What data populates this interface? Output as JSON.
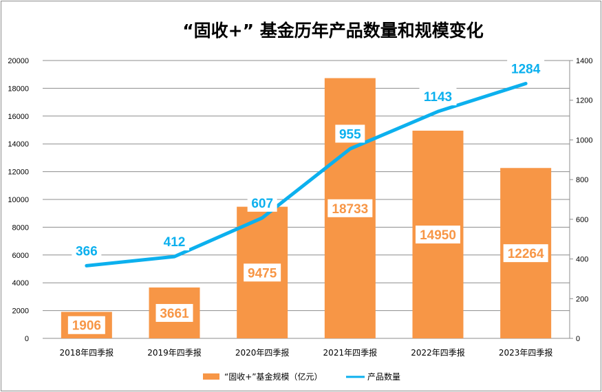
{
  "chart_data": {
    "type": "bar+line",
    "title": "“固收+” 基金历年产品数量和规模变化",
    "categories": [
      "2018年四季报",
      "2019年四季报",
      "2020年四季报",
      "2021年四季报",
      "2022年四季报",
      "2023年四季报"
    ],
    "series": [
      {
        "name": "“固收+”基金规模（亿元）",
        "type": "bar",
        "axis": "left",
        "color": "#f79646",
        "values": [
          1906,
          3661,
          9475,
          18733,
          14950,
          12264
        ]
      },
      {
        "name": "产品数量",
        "type": "line",
        "axis": "right",
        "color": "#0cb0ee",
        "values": [
          366,
          412,
          607,
          955,
          1143,
          1284
        ]
      }
    ],
    "y_left": {
      "min": 0,
      "max": 20000,
      "step": 2000,
      "ticks": [
        "0",
        "2000",
        "4000",
        "6000",
        "8000",
        "10000",
        "12000",
        "14000",
        "16000",
        "18000",
        "20000"
      ]
    },
    "y_right": {
      "min": 0,
      "max": 1400,
      "step": 200,
      "ticks": [
        "0",
        "200",
        "400",
        "600",
        "800",
        "1000",
        "1200",
        "1400"
      ]
    },
    "grid": true,
    "legend": "bottom",
    "data_labels": true
  }
}
